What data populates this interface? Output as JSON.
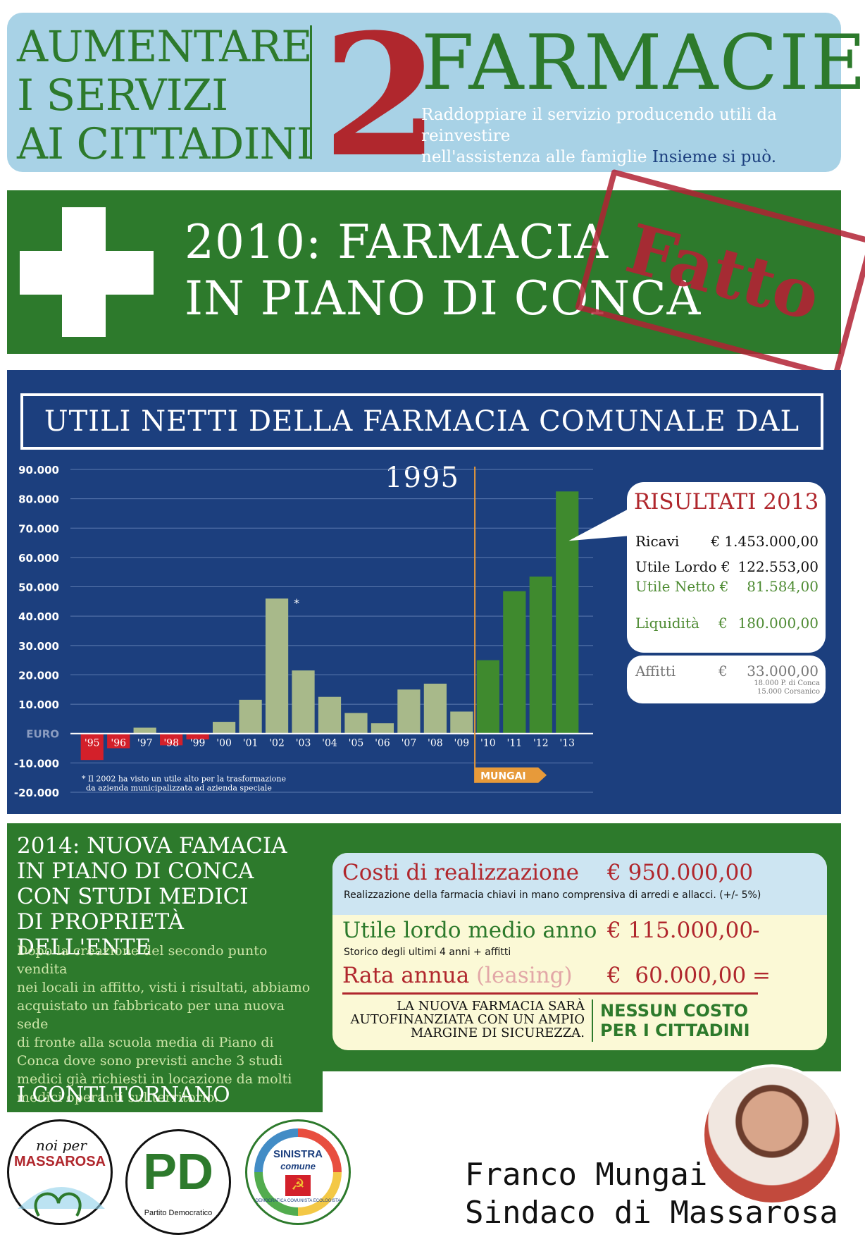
{
  "top": {
    "left_lines": [
      "AUMENTARE",
      "I SERVIZI",
      "AI CITTADINI"
    ],
    "number": "2",
    "title": "FARMACIE",
    "subtitle_1": "Raddoppiare il servizio producendo utili da reinvestire",
    "subtitle_2": "nell'assistenza alle famiglie",
    "subtitle_highlight": "Insieme si può."
  },
  "banner": {
    "line1": "2010: FARMACIA",
    "line2": "IN PIANO DI CONCA",
    "stamp": "Fatto"
  },
  "chart_title": "UTILI NETTI DELLA FARMACIA COMUNALE DAL 1995",
  "chart_data": {
    "type": "bar",
    "title": "UTILI NETTI DELLA FARMACIA COMUNALE DAL 1995",
    "ylabel": "EURO",
    "ylim": [
      -20000,
      90000
    ],
    "yticks": [
      90000,
      80000,
      70000,
      60000,
      50000,
      40000,
      30000,
      20000,
      10000,
      -10000,
      -20000
    ],
    "ytick_labels": [
      "90.000",
      "80.000",
      "70.000",
      "60.000",
      "50.000",
      "40.000",
      "30.000",
      "20.000",
      "10.000",
      "-10.000",
      "-20.000"
    ],
    "categories": [
      "'95",
      "'96",
      "'97",
      "'98",
      "'99",
      "'00",
      "'01",
      "'02",
      "'03",
      "'04",
      "'05",
      "'06",
      "'07",
      "'08",
      "'09",
      "'10",
      "'11",
      "'12",
      "'13"
    ],
    "values": [
      -9000,
      -5000,
      2000,
      -4000,
      -2000,
      4000,
      11500,
      46000,
      21500,
      12500,
      7000,
      3500,
      15000,
      17000,
      7500,
      25000,
      48500,
      53500,
      82500
    ],
    "colors": {
      "negative": "#d3202a",
      "before": "#a8b98a",
      "mungai": "#3f8a2e"
    },
    "mungai_start_index": 15,
    "marker_label": "MUNGAI",
    "asterisk": "*",
    "footnote_1": "* Il 2002 ha visto un utile alto per la trasformazione",
    "footnote_2": "da azienda municipalizzata ad azienda speciale",
    "grid": true
  },
  "results": {
    "title": "RISULTATI 2013",
    "rows": [
      {
        "label": "Ricavi",
        "currency": "€",
        "value": "1.453.000,00"
      },
      {
        "label": "Utile Lordo",
        "currency": "€",
        "value": "122.553,00"
      },
      {
        "label": "Utile Netto",
        "currency": "€",
        "value": "81.584,00"
      },
      {
        "label": "Liquidità",
        "currency": "€",
        "value": "180.000,00"
      }
    ],
    "affitti": {
      "label": "Affitti",
      "currency": "€",
      "value": "33.000,00",
      "note_1": "18.000 P. di Conca",
      "note_2": "15.000 Corsanico"
    }
  },
  "lower": {
    "title_lines": [
      "2014: NUOVA FAMACIA",
      "IN PIANO DI CONCA",
      "CON STUDI MEDICI",
      "DI PROPRIETÀ DELL'ENTE"
    ],
    "body_lines": [
      "Dopo la creazione del secondo punto vendita",
      "nei locali in affitto, visti i risultati, abbiamo",
      "acquistato un fabbricato per una nuova sede",
      "di fronte alla scuola media di Piano di",
      "Conca dove sono previsti anche 3 studi",
      "medici già richiesti in locazione da molti",
      "medici operanti sul territorio."
    ],
    "footer": "I CONTI TORNANO"
  },
  "costs": {
    "realizzazione_label": "Costi di realizzazione",
    "realizzazione_value": "€ 950.000,00",
    "realizzazione_note": "Realizzazione della farmacia chiavi in mano comprensiva di arredi e allacci. (+/- 5%)",
    "utile_label": "Utile lordo medio anno",
    "utile_value": "€ 115.000,00",
    "utile_op": "-",
    "utile_note": "Storico degli ultimi 4 anni + affitti",
    "rata_label": "Rata annua",
    "rata_paren": "(leasing)",
    "rata_value": "€  60.000,00",
    "rata_op": "=",
    "note_lines": [
      "LA NUOVA FARMACIA SARÀ",
      "AUTOFINANZIATA CON UN AMPIO",
      "MARGINE DI SICUREZZA."
    ],
    "no_cost_lines": [
      "NESSUN COSTO",
      "PER I CITTADINI"
    ]
  },
  "logos": {
    "noi_per": "noi per",
    "massarosa": "MASSAROSA",
    "pd": "PD",
    "pd_caption": "Partito Democratico",
    "sinistra": "SINISTRA",
    "comune": "comune",
    "sinistra_ring": "DEMOCRATICA COMUNISTA ECOLOGISTA"
  },
  "signature": {
    "name": "Franco Mungai",
    "role": "Sindaco di Massarosa"
  }
}
